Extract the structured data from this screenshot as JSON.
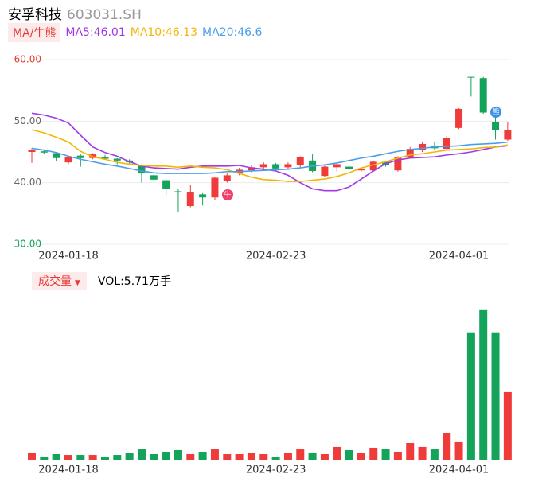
{
  "header": {
    "name": "安孚科技",
    "code": "603031.SH",
    "toggle": "MA/牛熊",
    "volume_toggle": "成交量",
    "volume_arrow": "▼",
    "volume_label": "VOL:5.71万手"
  },
  "chart_data": {
    "type": "candlestick",
    "categories": [
      null,
      null,
      null,
      "2024-01-18",
      null,
      null,
      null,
      null,
      null,
      null,
      null,
      null,
      null,
      null,
      null,
      null,
      null,
      null,
      null,
      null,
      "2024-02-23",
      null,
      null,
      null,
      null,
      null,
      null,
      null,
      null,
      null,
      null,
      null,
      null,
      null,
      null,
      "2024-04-01",
      null,
      null,
      null,
      null
    ],
    "open": [
      45.0,
      45.1,
      44.8,
      43.3,
      44.4,
      44.0,
      44.2,
      43.9,
      43.6,
      42.8,
      41.2,
      40.4,
      38.6,
      36.2,
      38.1,
      37.6,
      40.3,
      41.5,
      42.0,
      42.5,
      43.0,
      42.5,
      42.8,
      43.6,
      41.1,
      42.5,
      42.6,
      42.0,
      42.0,
      43.4,
      42.0,
      44.2,
      45.3,
      46.0,
      45.5,
      48.9,
      57.2,
      57.0,
      49.9,
      47.0
    ],
    "high": [
      45.6,
      45.3,
      45.0,
      44.3,
      44.6,
      44.8,
      44.5,
      44.0,
      43.8,
      43.0,
      41.4,
      40.6,
      39.0,
      39.6,
      38.3,
      41.0,
      41.5,
      42.4,
      42.8,
      43.3,
      43.2,
      43.3,
      44.3,
      44.6,
      42.8,
      43.1,
      42.8,
      42.5,
      43.6,
      43.6,
      44.3,
      45.8,
      46.6,
      46.6,
      47.6,
      52.1,
      57.2,
      57.2,
      51.5,
      49.8
    ],
    "low": [
      43.2,
      44.7,
      43.5,
      43.0,
      42.6,
      43.8,
      43.7,
      43.0,
      43.1,
      40.0,
      40.2,
      38.0,
      35.2,
      36.0,
      36.3,
      37.2,
      40.0,
      41.2,
      41.7,
      42.2,
      42.0,
      42.2,
      42.5,
      41.7,
      40.9,
      41.8,
      41.9,
      41.8,
      41.8,
      42.6,
      41.8,
      44.0,
      45.0,
      45.3,
      45.3,
      48.7,
      54.0,
      51.2,
      47.0,
      46.8
    ],
    "close": [
      45.3,
      44.9,
      44.0,
      44.1,
      44.0,
      44.6,
      43.9,
      43.6,
      43.3,
      41.5,
      40.5,
      39.0,
      38.4,
      38.4,
      37.6,
      40.8,
      41.2,
      42.1,
      42.5,
      43.0,
      42.3,
      43.0,
      44.1,
      41.9,
      42.6,
      43.0,
      42.2,
      42.3,
      43.4,
      42.8,
      44.1,
      45.5,
      46.3,
      45.6,
      47.3,
      52.0,
      57.1,
      51.4,
      48.5,
      48.5
    ],
    "up_color": "#f03b3b",
    "down_color": "#14a35a",
    "volume": [
      0.54,
      0.27,
      0.47,
      0.4,
      0.4,
      0.4,
      0.2,
      0.4,
      0.54,
      0.87,
      0.47,
      0.67,
      0.81,
      0.47,
      0.67,
      0.87,
      0.47,
      0.47,
      0.54,
      0.47,
      0.27,
      0.6,
      0.87,
      0.6,
      0.47,
      1.08,
      0.81,
      0.54,
      1.01,
      0.87,
      0.67,
      1.41,
      1.08,
      0.87,
      2.22,
      1.48,
      10.69,
      12.63,
      10.69,
      5.71
    ],
    "series": [
      {
        "name": "MA5:46.01",
        "color": "#a239e8",
        "values": [
          51.3,
          51.0,
          50.5,
          49.7,
          47.7,
          45.8,
          44.9,
          44.3,
          43.4,
          42.7,
          42.4,
          42.3,
          42.2,
          42.5,
          42.7,
          42.7,
          42.7,
          42.8,
          42.4,
          42.2,
          41.9,
          41.2,
          40.0,
          39.0,
          38.7,
          38.7,
          39.3,
          40.6,
          41.9,
          43.1,
          43.7,
          44.0,
          44.1,
          44.2,
          44.5,
          44.7,
          45.0,
          45.4,
          45.8,
          46.01
        ]
      },
      {
        "name": "MA10:46.13",
        "color": "#f2b705",
        "values": [
          48.6,
          48.1,
          47.4,
          46.6,
          45.1,
          44.2,
          43.8,
          43.3,
          43.0,
          42.8,
          42.7,
          42.7,
          42.5,
          42.7,
          42.5,
          42.4,
          42.1,
          41.5,
          40.9,
          40.5,
          40.4,
          40.2,
          40.2,
          40.4,
          40.6,
          41.0,
          41.6,
          42.4,
          42.9,
          43.4,
          44.0,
          44.5,
          44.7,
          45.0,
          45.3,
          45.4,
          45.5,
          45.7,
          45.8,
          46.13
        ]
      },
      {
        "name": "MA20:46.6",
        "color": "#4a9ee8",
        "values": [
          45.6,
          45.3,
          44.9,
          44.3,
          43.8,
          43.4,
          43.0,
          42.7,
          42.3,
          41.9,
          41.6,
          41.5,
          41.5,
          41.5,
          41.5,
          41.6,
          41.8,
          41.8,
          41.9,
          42.0,
          42.1,
          42.2,
          42.4,
          42.7,
          42.9,
          43.2,
          43.6,
          44.0,
          44.3,
          44.7,
          45.1,
          45.4,
          45.6,
          45.8,
          45.9,
          46.0,
          46.2,
          46.3,
          46.4,
          46.6
        ]
      }
    ],
    "ylim": [
      30,
      60
    ],
    "yticks": [
      {
        "value": 30,
        "label": "30.00"
      },
      {
        "value": 40,
        "label": "40.00"
      },
      {
        "value": 50,
        "label": "50.00"
      },
      {
        "value": 60,
        "label": "60.00"
      }
    ],
    "grid": true,
    "annotations": [
      "牛",
      "熊"
    ]
  }
}
